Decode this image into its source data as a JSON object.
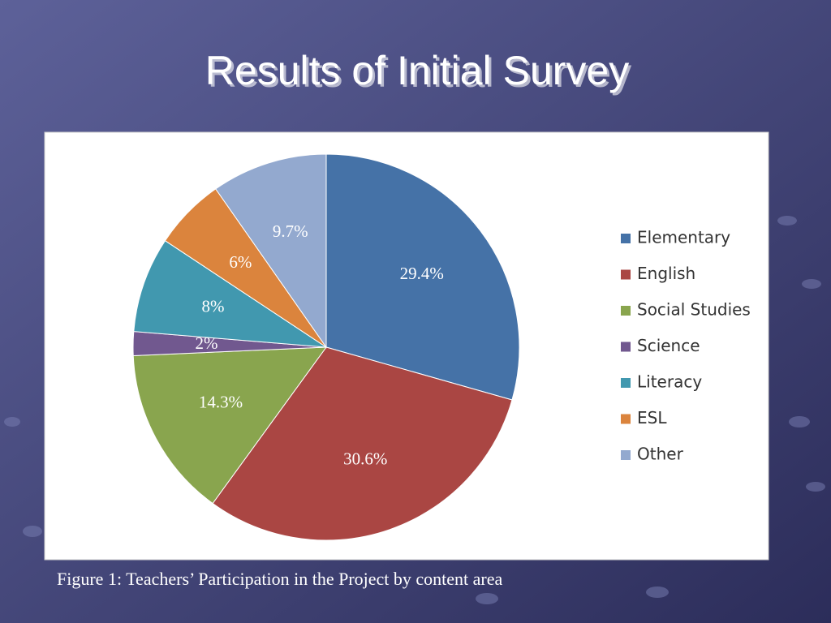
{
  "chart_data": {
    "type": "pie",
    "title": "Results of Initial Survey",
    "caption": "Figure 1: Teachers’ Participation in the Project by content area",
    "categories": [
      "Elementary",
      "English",
      "Social Studies",
      "Science",
      "Literacy",
      "ESL",
      "Other"
    ],
    "values": [
      29.4,
      30.6,
      14.3,
      2,
      8,
      6,
      9.7
    ],
    "value_labels": [
      "29.4%",
      "30.6%",
      "14.3%",
      "2%",
      "8%",
      "6%",
      "9.7%"
    ],
    "colors": [
      "#4572a7",
      "#aa4643",
      "#89a54e",
      "#71588f",
      "#4198af",
      "#db843d",
      "#93a9cf"
    ],
    "legend": "right"
  }
}
